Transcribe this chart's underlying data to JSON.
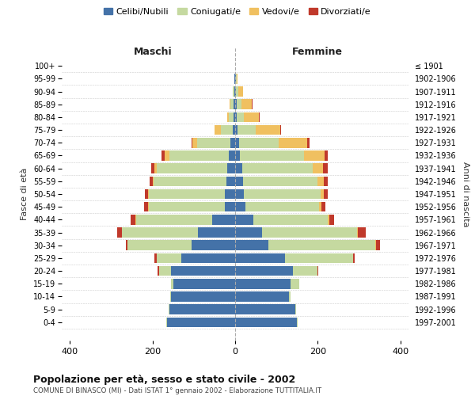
{
  "age_groups": [
    "0-4",
    "5-9",
    "10-14",
    "15-19",
    "20-24",
    "25-29",
    "30-34",
    "35-39",
    "40-44",
    "45-49",
    "50-54",
    "55-59",
    "60-64",
    "65-69",
    "70-74",
    "75-79",
    "80-84",
    "85-89",
    "90-94",
    "95-99",
    "100+"
  ],
  "birth_years": [
    "1997-2001",
    "1992-1996",
    "1987-1991",
    "1982-1986",
    "1977-1981",
    "1972-1976",
    "1967-1971",
    "1962-1966",
    "1957-1961",
    "1952-1956",
    "1947-1951",
    "1942-1946",
    "1937-1941",
    "1932-1936",
    "1927-1931",
    "1922-1926",
    "1917-1921",
    "1912-1916",
    "1907-1911",
    "1902-1906",
    "≤ 1901"
  ],
  "maschi": {
    "celibi": [
      165,
      160,
      155,
      150,
      155,
      130,
      105,
      90,
      55,
      25,
      24,
      22,
      20,
      15,
      12,
      5,
      4,
      4,
      2,
      1,
      0
    ],
    "coniugati": [
      2,
      2,
      2,
      5,
      30,
      60,
      155,
      185,
      185,
      185,
      185,
      175,
      170,
      145,
      80,
      30,
      12,
      8,
      3,
      1,
      0
    ],
    "vedovi": [
      0,
      0,
      0,
      0,
      0,
      0,
      0,
      0,
      1,
      1,
      2,
      3,
      5,
      10,
      12,
      15,
      3,
      2,
      1,
      0,
      0
    ],
    "divorziati": [
      0,
      0,
      0,
      0,
      2,
      5,
      5,
      10,
      12,
      10,
      8,
      8,
      8,
      8,
      2,
      0,
      0,
      0,
      0,
      0,
      0
    ]
  },
  "femmine": {
    "nubili": [
      150,
      145,
      130,
      135,
      140,
      120,
      80,
      65,
      45,
      24,
      22,
      20,
      18,
      12,
      10,
      5,
      4,
      3,
      2,
      1,
      0
    ],
    "coniugate": [
      2,
      2,
      5,
      20,
      60,
      165,
      260,
      230,
      180,
      180,
      185,
      180,
      170,
      155,
      95,
      45,
      18,
      12,
      5,
      2,
      0
    ],
    "vedove": [
      0,
      0,
      0,
      0,
      0,
      0,
      1,
      2,
      3,
      5,
      8,
      15,
      25,
      50,
      70,
      60,
      35,
      25,
      12,
      3,
      0
    ],
    "divorziate": [
      0,
      0,
      0,
      0,
      2,
      5,
      10,
      20,
      12,
      10,
      10,
      10,
      12,
      8,
      5,
      2,
      2,
      2,
      0,
      0,
      0
    ]
  },
  "colors": {
    "celibi": "#4472a8",
    "coniugati": "#c5d9a0",
    "vedovi": "#f0c060",
    "divorziati": "#c0392b"
  },
  "xlim": 420,
  "title": "Popolazione per età, sesso e stato civile - 2002",
  "subtitle": "COMUNE DI BINASCO (MI) - Dati ISTAT 1° gennaio 2002 - Elaborazione TUTTITALIA.IT",
  "xlabel_left": "Maschi",
  "xlabel_right": "Femmine",
  "ylabel_left": "Fasce di età",
  "ylabel_right": "Anni di nascita",
  "legend_labels": [
    "Celibi/Nubili",
    "Coniugati/e",
    "Vedovi/e",
    "Divorziati/e"
  ],
  "background_color": "#ffffff",
  "grid_color": "#cccccc"
}
